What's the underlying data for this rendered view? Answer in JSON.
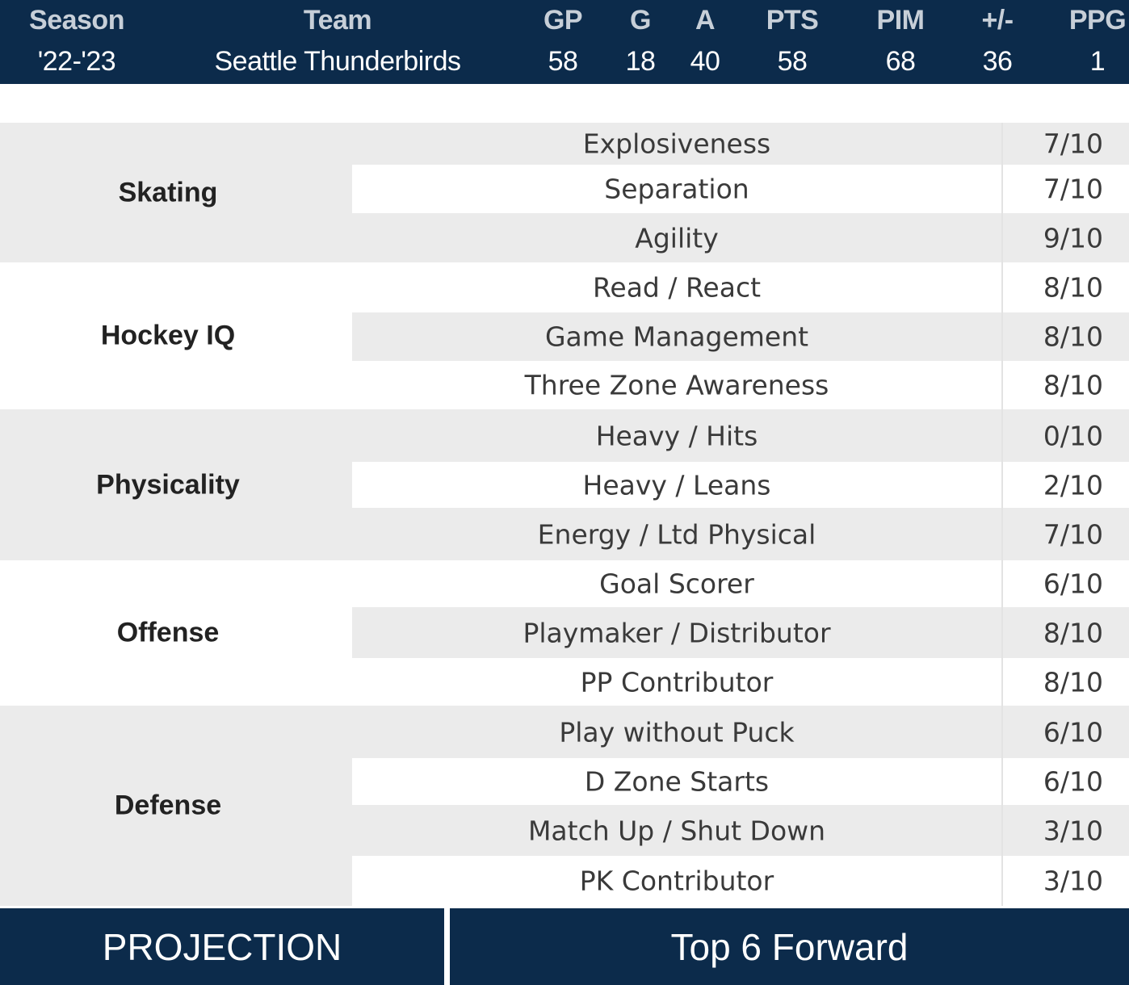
{
  "stats": {
    "headers": {
      "season": "Season",
      "team": "Team",
      "gp": "GP",
      "g": "G",
      "a": "A",
      "pts": "PTS",
      "pim": "PIM",
      "plus_minus": "+/-",
      "ppg": "PPG"
    },
    "values": {
      "season": "'22-'23",
      "team": "Seattle Thunderbirds",
      "gp": "58",
      "g": "18",
      "a": "40",
      "pts": "58",
      "pim": "68",
      "plus_minus": "36",
      "ppg": "1"
    }
  },
  "ratings": [
    {
      "category": "Skating",
      "items": [
        {
          "label": "Explosiveness",
          "score": "7/10"
        },
        {
          "label": "Separation",
          "score": "7/10"
        },
        {
          "label": "Agility",
          "score": "9/10"
        }
      ]
    },
    {
      "category": "Hockey IQ",
      "items": [
        {
          "label": "Read / React",
          "score": "8/10"
        },
        {
          "label": "Game Management",
          "score": "8/10"
        },
        {
          "label": "Three Zone Awareness",
          "score": "8/10"
        }
      ]
    },
    {
      "category": "Physicality",
      "items": [
        {
          "label": "Heavy / Hits",
          "score": "0/10"
        },
        {
          "label": "Heavy / Leans",
          "score": "2/10"
        },
        {
          "label": "Energy / Ltd Physical",
          "score": "7/10"
        }
      ]
    },
    {
      "category": "Offense",
      "items": [
        {
          "label": "Goal Scorer",
          "score": "6/10"
        },
        {
          "label": "Playmaker / Distributor",
          "score": "8/10"
        },
        {
          "label": "PP Contributor",
          "score": "8/10"
        }
      ]
    },
    {
      "category": "Defense",
      "items": [
        {
          "label": "Play without Puck",
          "score": "6/10"
        },
        {
          "label": "D Zone Starts",
          "score": "6/10"
        },
        {
          "label": "Match Up / Shut Down",
          "score": "3/10"
        },
        {
          "label": "PK Contributor",
          "score": "3/10"
        }
      ]
    }
  ],
  "projection": {
    "label": "PROJECTION",
    "value": "Top 6 Forward"
  },
  "colors": {
    "navy": "#0c2b4b",
    "row_shade": "#ebebeb"
  }
}
